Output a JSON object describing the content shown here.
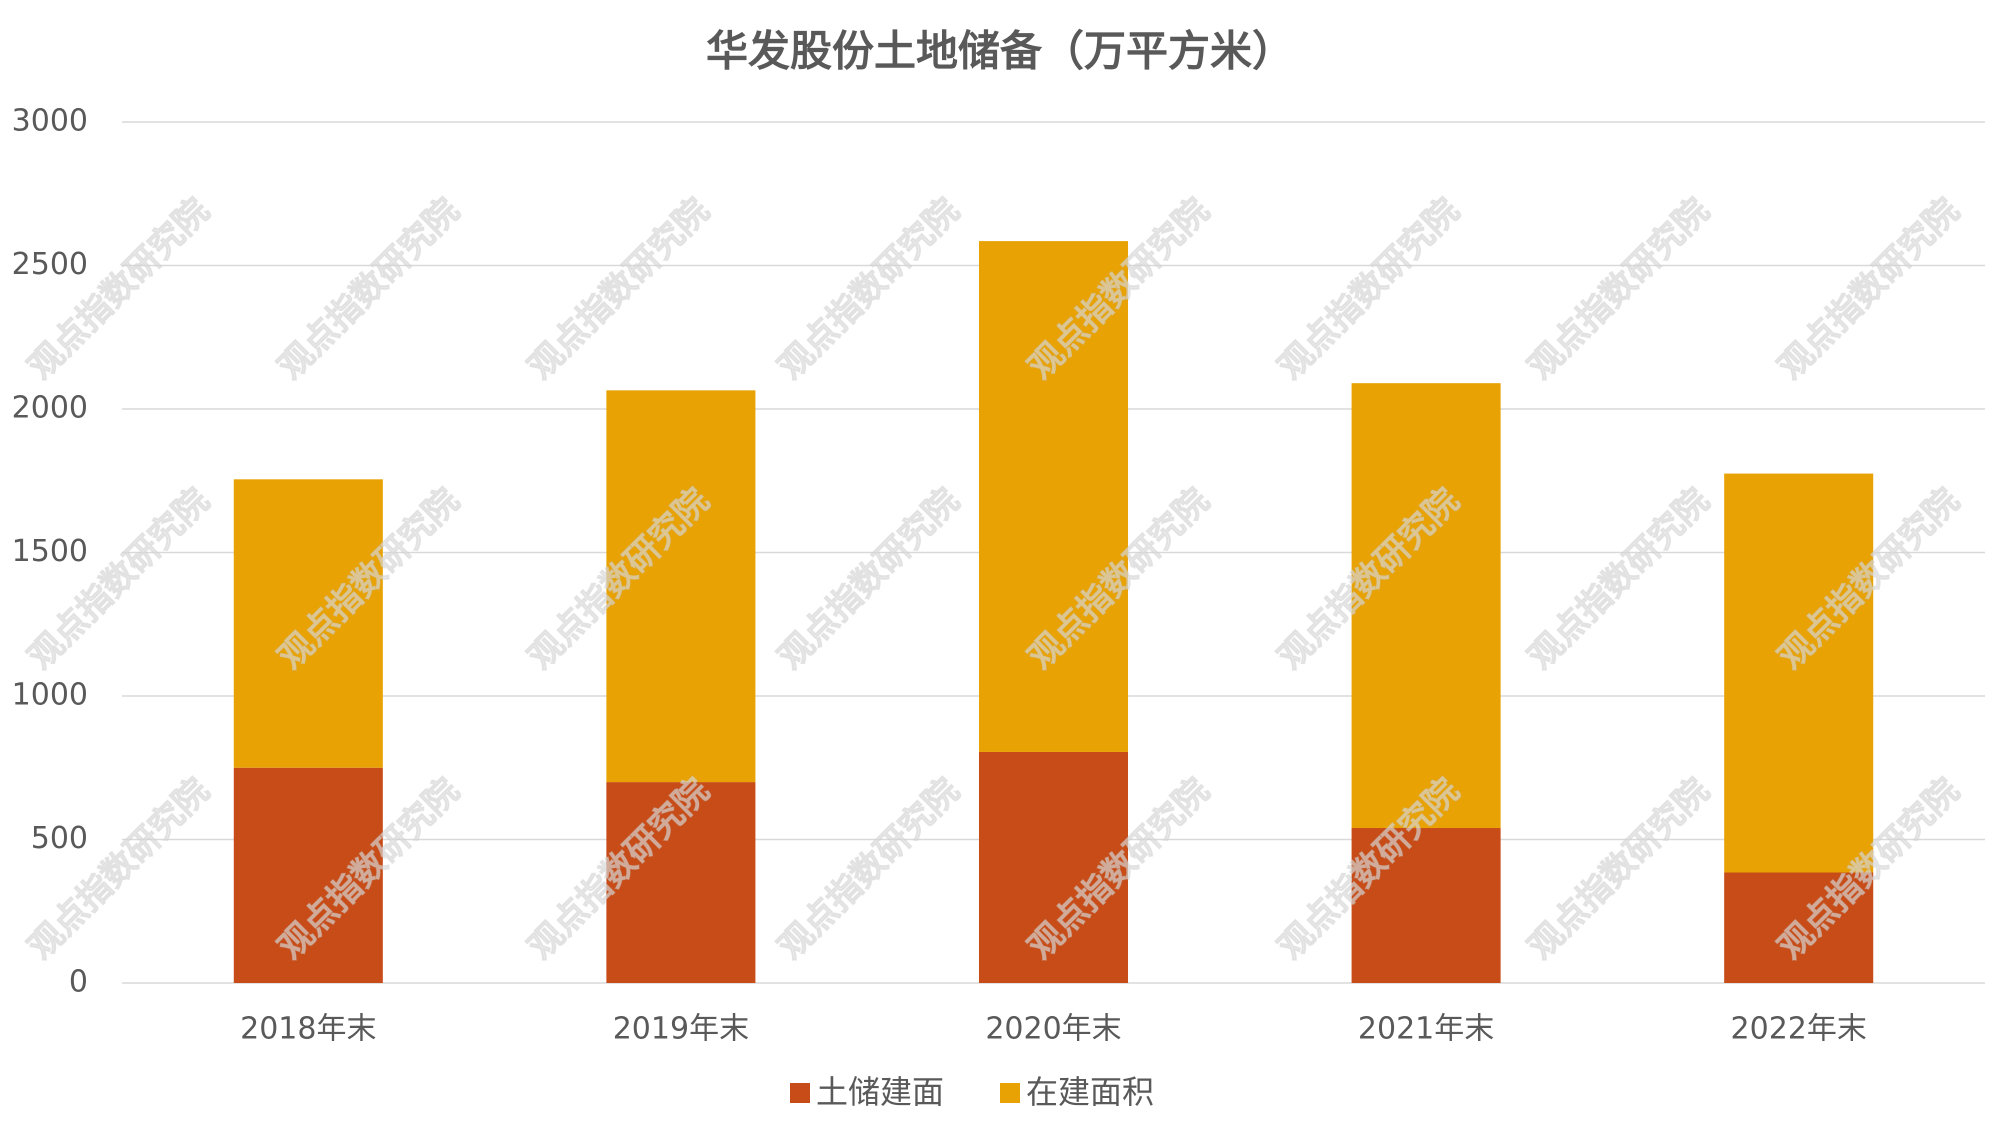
{
  "chart_data": {
    "type": "stacked_bar",
    "title": "华发股份土地储备（万平方米）",
    "categories": [
      "2018年末",
      "2019年末",
      "2020年末",
      "2021年末",
      "2022年末"
    ],
    "series": [
      {
        "name": "土储建面",
        "color": "#c84c17",
        "values": [
          750,
          700,
          805,
          540,
          385
        ]
      },
      {
        "name": "在建面积",
        "color": "#e8a204",
        "values": [
          1005,
          1365,
          1780,
          1550,
          1390
        ]
      }
    ],
    "ylim": [
      0,
      3000
    ],
    "yticks": [
      0,
      500,
      1000,
      1500,
      2000,
      2500,
      3000
    ],
    "grid": true,
    "legend": "bottom",
    "watermark": "观点指数研究院"
  }
}
